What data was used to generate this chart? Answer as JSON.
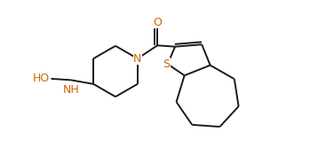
{
  "background_color": "#ffffff",
  "bond_color": "#1a1a1a",
  "atom_colors": {
    "O": "#cc6600",
    "N": "#cc6600",
    "S": "#cc6600",
    "HO": "#cc6600",
    "NH": "#cc6600"
  },
  "lw": 1.4,
  "fontsize": 9
}
